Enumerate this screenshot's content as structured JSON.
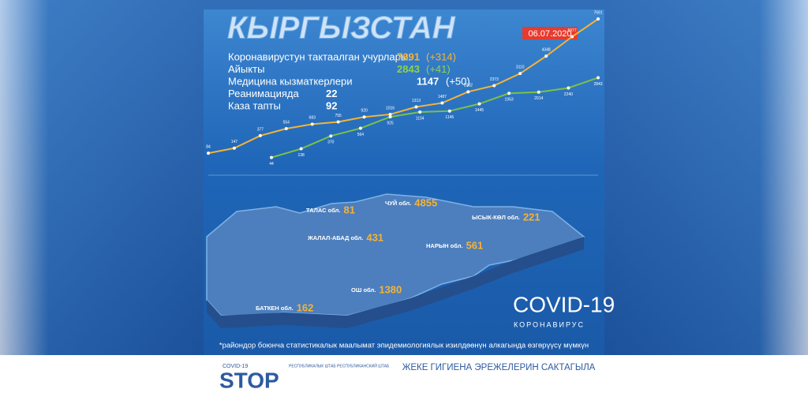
{
  "header": {
    "title": "КЫРГЫЗСТАН",
    "date": "06.07.2020"
  },
  "stats": [
    {
      "label": "Коронавирустун тактаалган учурлары:",
      "value": "7691",
      "delta": "(+314)",
      "color": "#f5b335"
    },
    {
      "label": "Айыкты",
      "value": "2843",
      "delta": "(+41)",
      "color": "#8fd14f"
    },
    {
      "label": "Медицина кызматкерлери",
      "value": "1147",
      "delta": "(+50)",
      "color": "#ffffff"
    },
    {
      "label": "Реанимацияда",
      "value": "22",
      "color": "#ffffff"
    },
    {
      "label": "Каза тапты",
      "value": "92",
      "color": "#ffffff"
    }
  ],
  "trend": {
    "scale": "sqrt",
    "ylim": [
      0,
      7691
    ],
    "series": [
      {
        "color": "#f5b335",
        "values": [
          84,
          147,
          377,
          554,
          683,
          755,
          920,
          1016,
          1313,
          1487,
          2032,
          2373,
          3110,
          4348,
          5977,
          7691
        ]
      },
      {
        "color": "#7cc242",
        "values": [
          44,
          138,
          370,
          564,
          925,
          1104,
          1145,
          1445,
          1953,
          2014,
          2240,
          2843
        ]
      }
    ]
  },
  "regions": [
    {
      "name": "ТАЛАС обл.",
      "value": "81"
    },
    {
      "name": "ЧУЙ обл.",
      "value": "4855"
    },
    {
      "name": "ЫСЫК-КӨЛ обл.",
      "value": "221"
    },
    {
      "name": "ЖАЛАЛ-АБАД обл.",
      "value": "431"
    },
    {
      "name": "НАРЫН обл.",
      "value": "561"
    },
    {
      "name": "ОШ обл.",
      "value": "1380"
    },
    {
      "name": "БАТКЕН обл.",
      "value": "162"
    }
  ],
  "badge": {
    "title": "COVID-19",
    "subtitle": "КОРОНАВИРУС"
  },
  "footnote": "*райондор боюнча статистикалык маалымат эпидемиологиялык изилдөөнүн алкагында өзгөрүүсү мүмкүн",
  "footer": {
    "logo_small": "COVID-19",
    "logo": "STOP",
    "org": "РЕСПУБЛИКАЛЫК ШТАБ РЕСПУБЛИКАНСКИЙ ШТАБ",
    "slogan": "ЖЕКЕ ГИГИЕНА ЭРЕЖЕЛЕРИН САКТАГЫЛА"
  }
}
